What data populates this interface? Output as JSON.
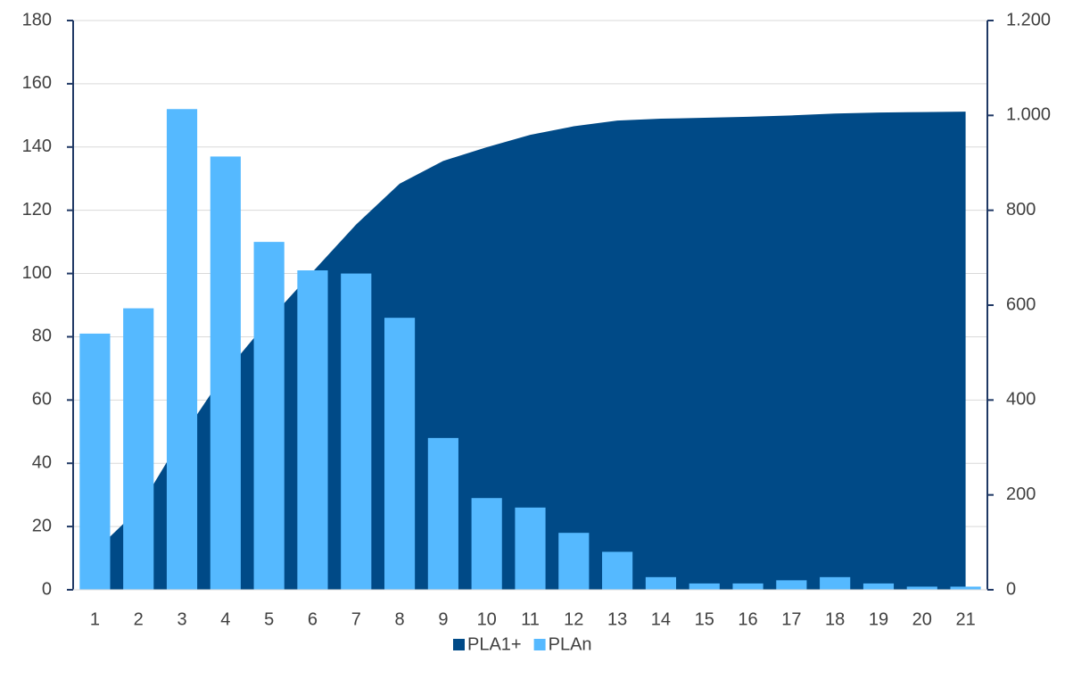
{
  "chart_data": {
    "type": "bar",
    "categories": [
      "1",
      "2",
      "3",
      "4",
      "5",
      "6",
      "7",
      "8",
      "9",
      "10",
      "11",
      "12",
      "13",
      "14",
      "15",
      "16",
      "17",
      "18",
      "19",
      "20",
      "21"
    ],
    "series": [
      {
        "name": "PLA1+",
        "type": "area",
        "axis": "y2",
        "color": "#004a87",
        "values": [
          81,
          170,
          322,
          459,
          569,
          670,
          770,
          856,
          904,
          933,
          959,
          977,
          989,
          993,
          995,
          997,
          1000,
          1004,
          1006,
          1007,
          1008
        ]
      },
      {
        "name": "PLAn",
        "type": "bar",
        "color": "#55b9ff",
        "values": [
          81,
          89,
          152,
          137,
          110,
          101,
          100,
          86,
          48,
          29,
          26,
          18,
          12,
          4,
          2,
          2,
          3,
          4,
          2,
          1,
          1
        ]
      }
    ],
    "ylim": [
      0,
      180
    ],
    "yticks": [
      0,
      20,
      40,
      60,
      80,
      100,
      120,
      140,
      160,
      180
    ],
    "y2lim": [
      0,
      1200
    ],
    "y2ticks": [
      0,
      200,
      400,
      600,
      800,
      {
        "value": 1000,
        "label": "1.000"
      },
      {
        "value": 1200,
        "label": "1.200"
      }
    ],
    "grid": true,
    "legend": "bottom"
  }
}
